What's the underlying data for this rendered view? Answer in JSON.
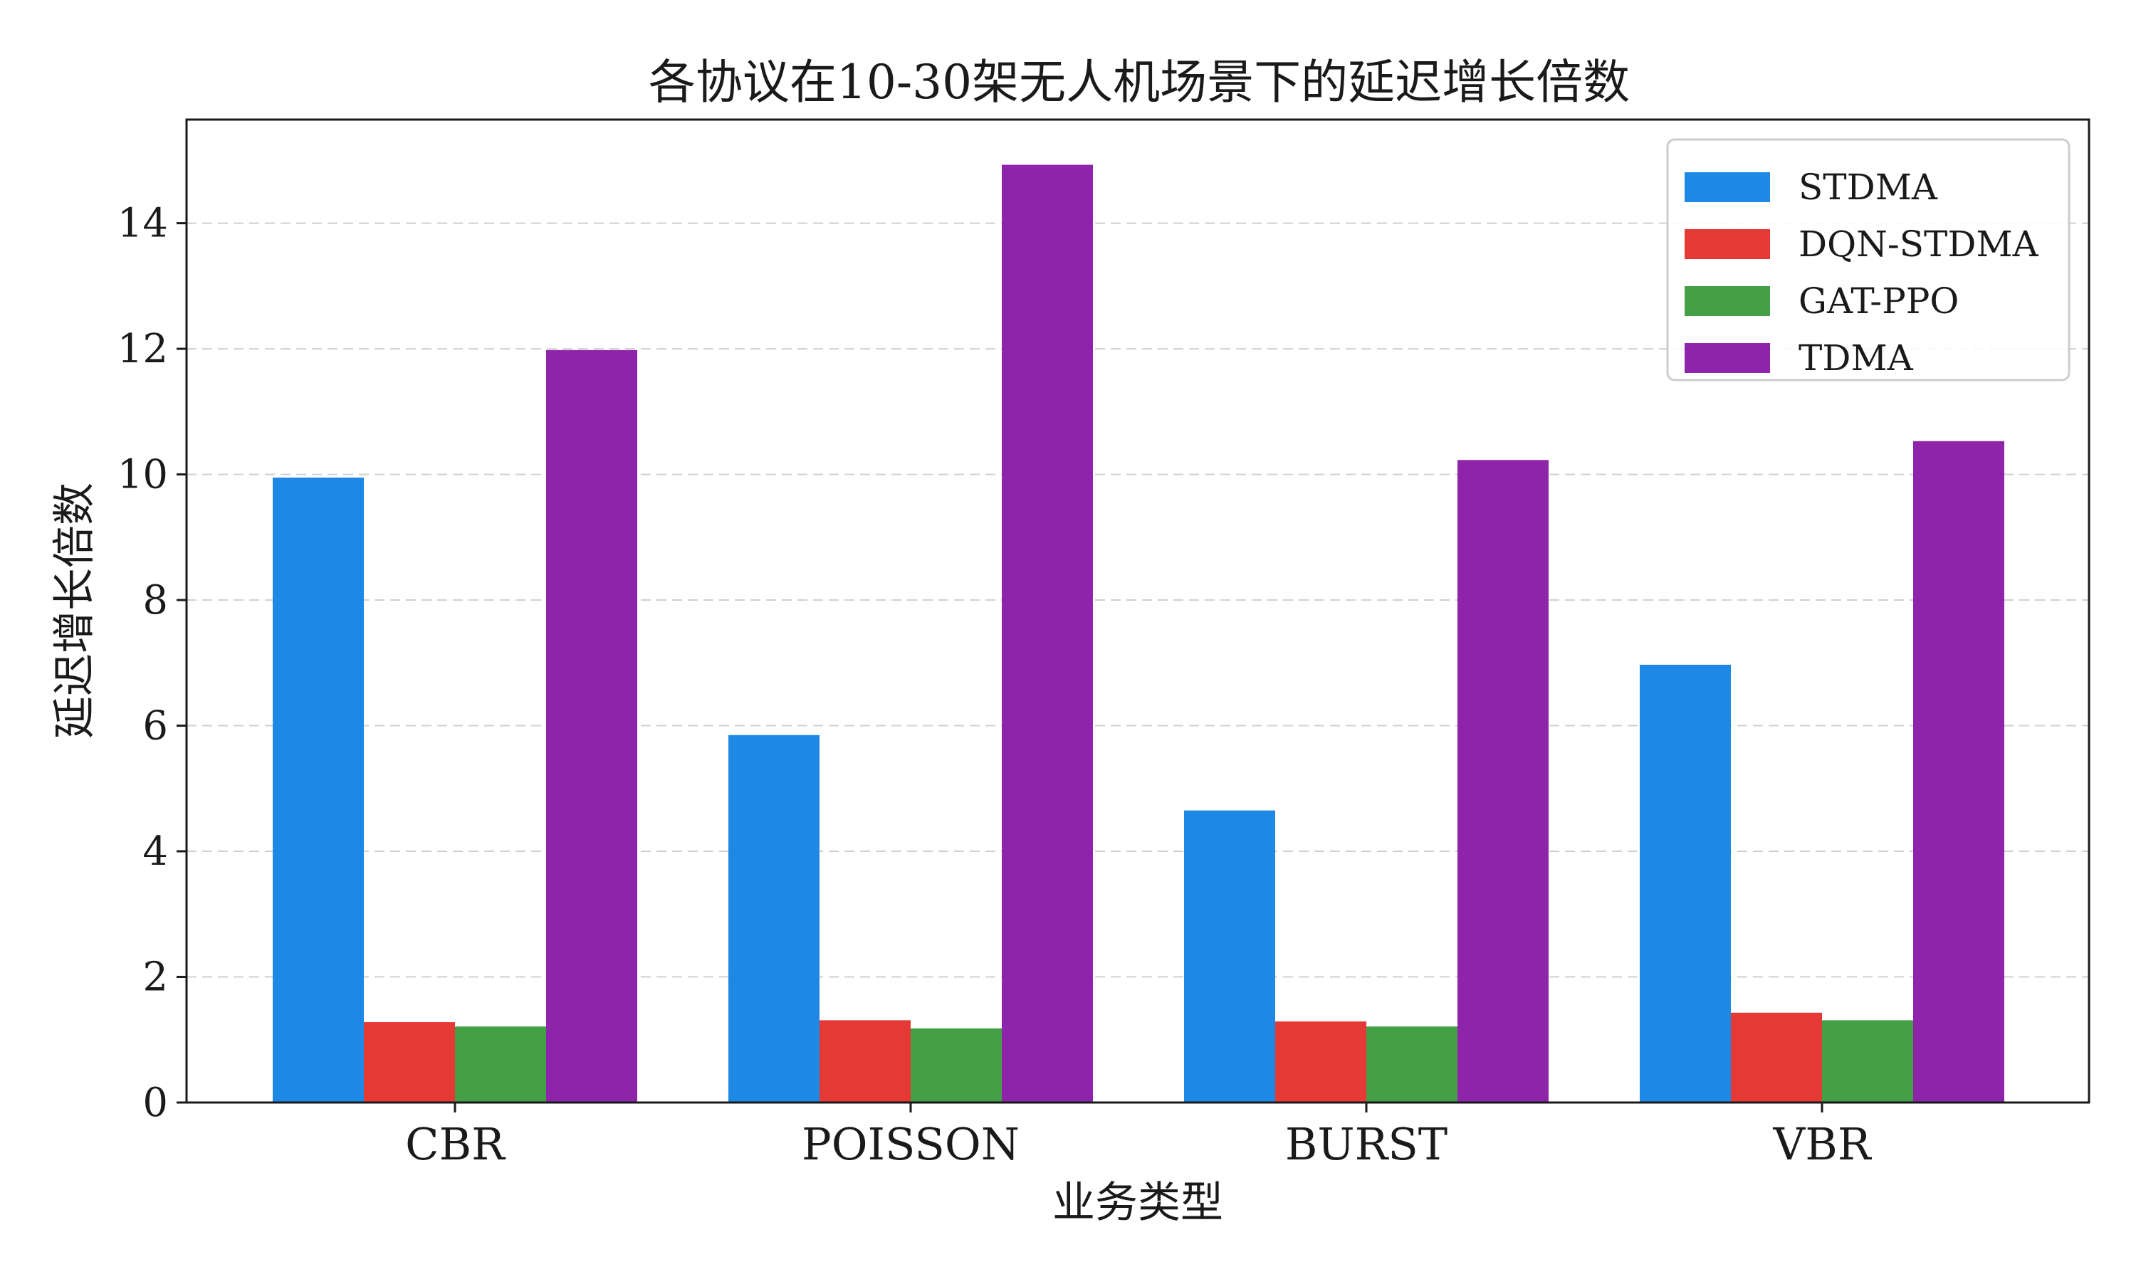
{
  "chart_data": {
    "type": "bar",
    "title": "各协议在10-30架无人机场景下的延迟增长倍数",
    "xlabel": "业务类型",
    "ylabel": "延迟增长倍数",
    "categories": [
      "CBR",
      "POISSON",
      "BURST",
      "VBR"
    ],
    "series": [
      {
        "name": "STDMA",
        "color": "#1e88e5",
        "values": [
          9.95,
          5.85,
          4.65,
          6.97
        ]
      },
      {
        "name": "DQN-STDMA",
        "color": "#e53935",
        "values": [
          1.28,
          1.31,
          1.29,
          1.43
        ]
      },
      {
        "name": "GAT-PPO",
        "color": "#43a047",
        "values": [
          1.21,
          1.18,
          1.21,
          1.31
        ]
      },
      {
        "name": "TDMA",
        "color": "#8e24aa",
        "values": [
          11.98,
          14.93,
          10.23,
          10.53
        ]
      }
    ],
    "ylim": [
      0,
      15.65
    ],
    "yticks": [
      0,
      2,
      4,
      6,
      8,
      10,
      12,
      14
    ],
    "grid": "y-dashed",
    "legend_position": "top-right"
  }
}
